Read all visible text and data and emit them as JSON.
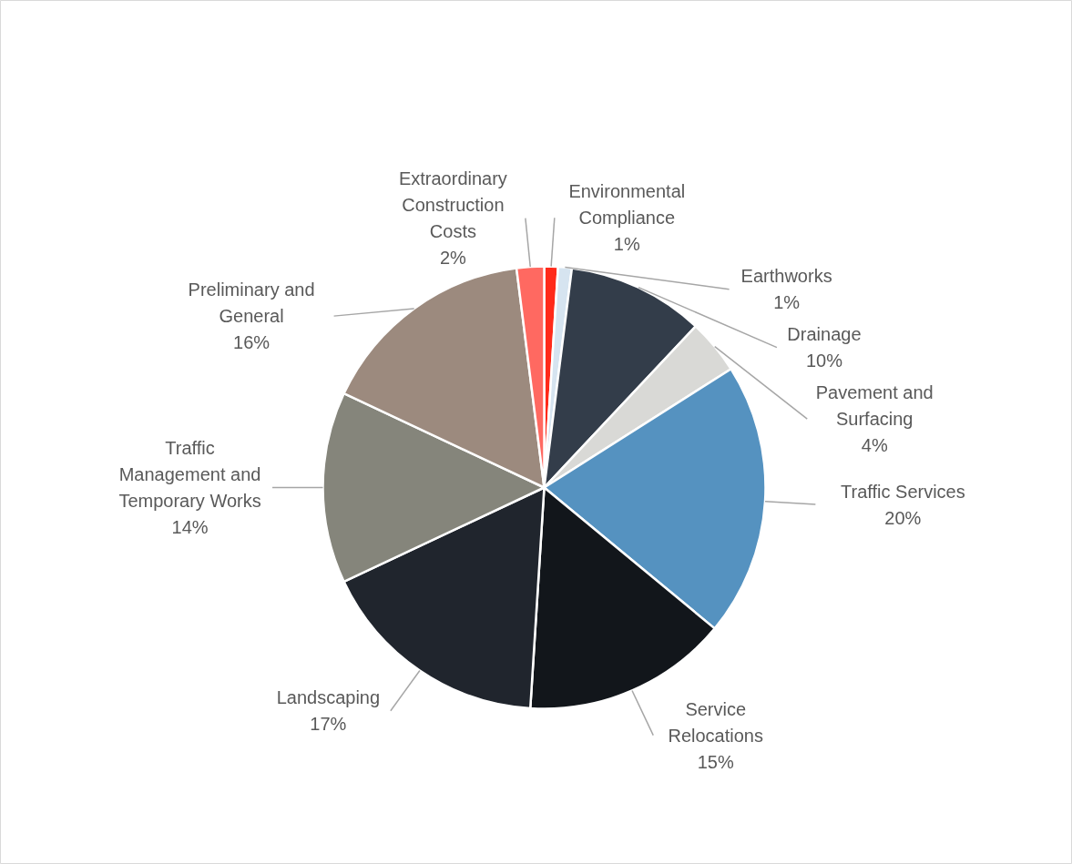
{
  "chart_data": {
    "type": "pie",
    "categories": [
      "Environmental Compliance",
      "Earthworks",
      "Drainage",
      "Pavement and Surfacing",
      "Traffic Services",
      "Service Relocations",
      "Landscaping",
      "Traffic Management and Temporary Works",
      "Preliminary and General",
      "Extraordinary Construction Costs"
    ],
    "values": [
      1,
      1,
      10,
      4,
      20,
      15,
      17,
      14,
      16,
      2
    ],
    "colors": [
      "#ff2a1a",
      "#d6e4f0",
      "#333d4a",
      "#d9d9d6",
      "#5592c0",
      "#12161b",
      "#20252d",
      "#85857b",
      "#9c8a7e",
      "#ff6961"
    ],
    "value_labels": [
      "1%",
      "1%",
      "10%",
      "4%",
      "20%",
      "15%",
      "17%",
      "14%",
      "16%",
      "2%"
    ]
  }
}
